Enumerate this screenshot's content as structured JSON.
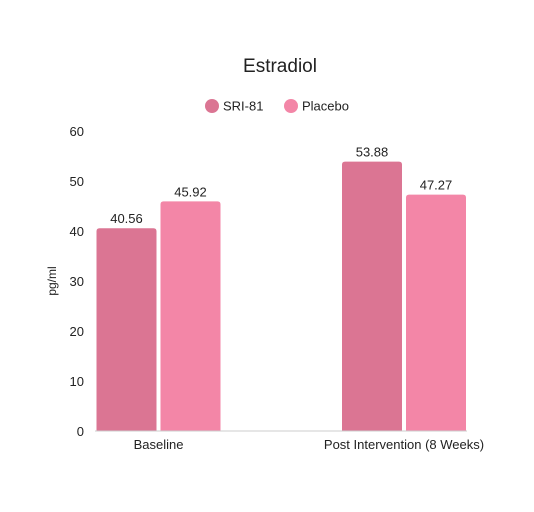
{
  "chart_data": {
    "type": "bar",
    "title": "Estradiol",
    "ylabel": "pg/ml",
    "xlabel": "",
    "categories": [
      "Baseline",
      "Post Intervention (8 Weeks)"
    ],
    "series": [
      {
        "name": "SRI-81",
        "values": [
          40.56,
          53.88
        ],
        "labels": [
          "40.56",
          "53.88"
        ],
        "color": "#db7593"
      },
      {
        "name": "Placebo",
        "values": [
          45.92,
          47.27
        ],
        "labels": [
          "45.92",
          "47.27"
        ],
        "color": "#f386a7"
      }
    ],
    "ylim": [
      0,
      60
    ],
    "yticks": [
      0,
      10,
      20,
      30,
      40,
      50,
      60
    ],
    "ytick_labels": [
      "0",
      "10",
      "20",
      "30",
      "40",
      "50",
      "60"
    ],
    "grid": false,
    "legend_position": "top-center"
  }
}
